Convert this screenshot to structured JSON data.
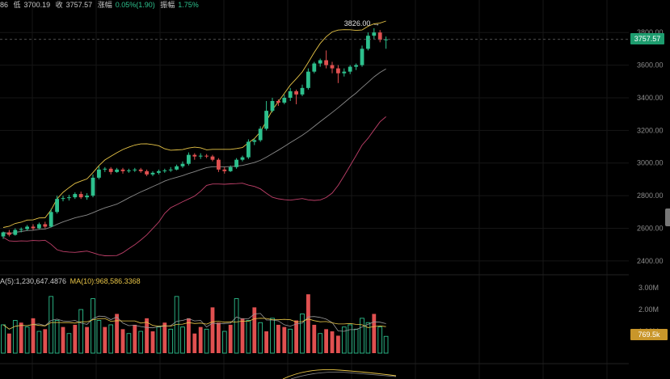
{
  "header": {
    "low_label": "低",
    "low_value": "3700.19",
    "close_label": "收",
    "close_value": "3757.57",
    "change_label": "涨幅",
    "change_value": "0.05%(1.90)",
    "amplitude_label": "振幅",
    "amplitude_value": "1.75%",
    "leading_fragment": "86"
  },
  "volume_header": {
    "ma5": "A(5):1,230,647.4876",
    "ma10": "MA(10):968,586.3368"
  },
  "price_tag": "3757.57",
  "volume_tag": "769.5k",
  "high_annotation": "3826.00 →",
  "colors": {
    "up": "#2dc08d",
    "down": "#e05050",
    "ma_yellow": "#e8c547",
    "band_lower": "#c0406a",
    "middle_line": "#8a8a8a",
    "vol_ma5": "#9a9a9a"
  },
  "chart_data": [
    {
      "type": "candlestick",
      "y_tick_labels": [
        "3800.00",
        "3600.00",
        "3400.00",
        "3200.00",
        "3000.00",
        "2800.00",
        "2600.00",
        "2400.00"
      ],
      "ylim": [
        2340,
        3900
      ],
      "last_price": 3757.57,
      "high_marker": 3826.0,
      "candles": [
        [
          2550,
          2575,
          2535,
          2580
        ],
        [
          2575,
          2560,
          2550,
          2590
        ],
        [
          2560,
          2590,
          2555,
          2600
        ],
        [
          2590,
          2595,
          2575,
          2605
        ],
        [
          2595,
          2610,
          2585,
          2620
        ],
        [
          2610,
          2600,
          2590,
          2625
        ],
        [
          2600,
          2625,
          2595,
          2635
        ],
        [
          2625,
          2610,
          2600,
          2640
        ],
        [
          2610,
          2700,
          2605,
          2720
        ],
        [
          2700,
          2780,
          2690,
          2800
        ],
        [
          2780,
          2785,
          2765,
          2800
        ],
        [
          2785,
          2790,
          2770,
          2805
        ],
        [
          2790,
          2810,
          2780,
          2820
        ],
        [
          2810,
          2790,
          2780,
          2825
        ],
        [
          2790,
          2800,
          2775,
          2815
        ],
        [
          2800,
          2910,
          2790,
          2930
        ],
        [
          2910,
          2960,
          2900,
          2980
        ],
        [
          2960,
          2965,
          2945,
          2975
        ],
        [
          2965,
          2945,
          2930,
          2975
        ],
        [
          2945,
          2960,
          2940,
          2970
        ],
        [
          2960,
          2950,
          2935,
          2970
        ],
        [
          2950,
          2955,
          2940,
          2965
        ],
        [
          2955,
          2960,
          2945,
          2970
        ],
        [
          2960,
          2950,
          2940,
          2970
        ],
        [
          2950,
          2930,
          2920,
          2960
        ],
        [
          2930,
          2940,
          2920,
          2950
        ],
        [
          2940,
          2950,
          2930,
          2960
        ],
        [
          2950,
          2955,
          2940,
          2965
        ],
        [
          2955,
          2960,
          2945,
          2975
        ],
        [
          2960,
          2980,
          2955,
          2990
        ],
        [
          2980,
          2995,
          2970,
          3010
        ],
        [
          2995,
          3050,
          2985,
          3065
        ],
        [
          3050,
          3040,
          3020,
          3060
        ],
        [
          3040,
          3045,
          3025,
          3060
        ],
        [
          3045,
          3040,
          3030,
          3055
        ],
        [
          3040,
          3020,
          3010,
          3050
        ],
        [
          3020,
          2960,
          2945,
          3030
        ],
        [
          2960,
          2950,
          2935,
          2975
        ],
        [
          2950,
          2975,
          2945,
          2985
        ],
        [
          2975,
          3020,
          2965,
          3030
        ],
        [
          3020,
          3035,
          3010,
          3045
        ],
        [
          3035,
          3130,
          3025,
          3145
        ],
        [
          3130,
          3140,
          3110,
          3150
        ],
        [
          3140,
          3210,
          3130,
          3225
        ],
        [
          3210,
          3320,
          3200,
          3380
        ],
        [
          3320,
          3380,
          3310,
          3400
        ],
        [
          3380,
          3370,
          3350,
          3390
        ],
        [
          3370,
          3400,
          3360,
          3420
        ],
        [
          3400,
          3440,
          3380,
          3460
        ],
        [
          3440,
          3420,
          3360,
          3450
        ],
        [
          3420,
          3460,
          3410,
          3480
        ],
        [
          3460,
          3560,
          3450,
          3580
        ],
        [
          3560,
          3610,
          3550,
          3620
        ],
        [
          3610,
          3630,
          3590,
          3640
        ],
        [
          3630,
          3600,
          3580,
          3690
        ],
        [
          3600,
          3580,
          3550,
          3620
        ],
        [
          3580,
          3550,
          3490,
          3600
        ],
        [
          3550,
          3560,
          3530,
          3580
        ],
        [
          3560,
          3590,
          3545,
          3600
        ],
        [
          3590,
          3600,
          3570,
          3610
        ],
        [
          3600,
          3700,
          3590,
          3720
        ],
        [
          3700,
          3780,
          3690,
          3800
        ],
        [
          3780,
          3800,
          3760,
          3826
        ],
        [
          3800,
          3755,
          3740,
          3815
        ],
        [
          3755,
          3757.57,
          3700.19,
          3775
        ]
      ]
    },
    {
      "type": "bar",
      "y_tick_labels": [
        "3.00M",
        "2.00M",
        "1.00M"
      ],
      "ylim": [
        0,
        3.3
      ],
      "volume_last": "769.5k",
      "volumes": [
        [
          1.3,
          1
        ],
        [
          0.9,
          0
        ],
        [
          1.5,
          1
        ],
        [
          1.4,
          0
        ],
        [
          1.2,
          1
        ],
        [
          1.6,
          0
        ],
        [
          1.0,
          1
        ],
        [
          1.1,
          0
        ],
        [
          2.6,
          1
        ],
        [
          1.5,
          1
        ],
        [
          1.2,
          0
        ],
        [
          0.9,
          1
        ],
        [
          1.3,
          0
        ],
        [
          2.0,
          1
        ],
        [
          1.2,
          0
        ],
        [
          2.5,
          1
        ],
        [
          1.5,
          1
        ],
        [
          1.2,
          0
        ],
        [
          1.3,
          1
        ],
        [
          1.8,
          0
        ],
        [
          1.1,
          0
        ],
        [
          0.9,
          1
        ],
        [
          1.3,
          0
        ],
        [
          1.0,
          1
        ],
        [
          1.6,
          0
        ],
        [
          1.0,
          0
        ],
        [
          1.2,
          1
        ],
        [
          1.4,
          0
        ],
        [
          1.1,
          1
        ],
        [
          2.6,
          1
        ],
        [
          1.2,
          1
        ],
        [
          1.6,
          0
        ],
        [
          0.9,
          0
        ],
        [
          1.2,
          0
        ],
        [
          1.1,
          1
        ],
        [
          2.1,
          0
        ],
        [
          1.4,
          0
        ],
        [
          1.0,
          1
        ],
        [
          1.3,
          0
        ],
        [
          2.5,
          1
        ],
        [
          1.6,
          0
        ],
        [
          1.5,
          1
        ],
        [
          2.1,
          0
        ],
        [
          1.4,
          1
        ],
        [
          1.0,
          0
        ],
        [
          1.6,
          1
        ],
        [
          1.3,
          0
        ],
        [
          1.2,
          0
        ],
        [
          1.1,
          1
        ],
        [
          1.5,
          0
        ],
        [
          1.8,
          1
        ],
        [
          2.7,
          0
        ],
        [
          1.3,
          0
        ],
        [
          0.9,
          1
        ],
        [
          1.1,
          0
        ],
        [
          1.0,
          0
        ],
        [
          0.8,
          0
        ],
        [
          1.2,
          1
        ],
        [
          1.3,
          1
        ],
        [
          1.1,
          1
        ],
        [
          1.6,
          1
        ],
        [
          1.4,
          1
        ],
        [
          1.8,
          0
        ],
        [
          1.2,
          1
        ],
        [
          0.77,
          1
        ]
      ]
    }
  ]
}
